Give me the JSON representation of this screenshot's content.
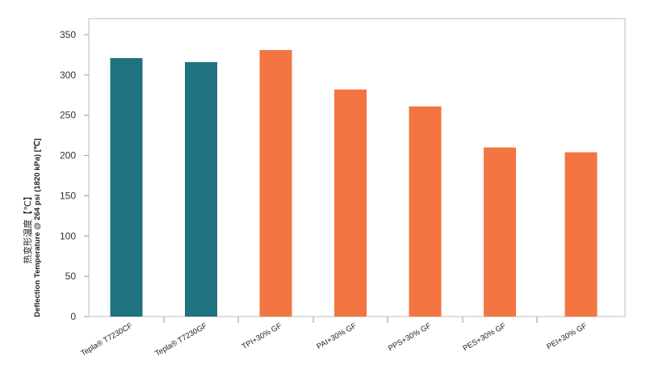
{
  "chart_data": {
    "type": "bar",
    "categories": [
      "Tepla® T7230CF",
      "Tepla® T7230GF",
      "TPI+30% GF",
      "PAI+30% GF",
      "PPS+30% GF",
      "PES+30% GF",
      "PEI+30% GF"
    ],
    "values": [
      321,
      316,
      331,
      282,
      261,
      210,
      204
    ],
    "bar_colors": [
      "#1f727f",
      "#1f727f",
      "#f37542",
      "#f37542",
      "#f37542",
      "#f37542",
      "#f37542"
    ],
    "ylabel_cn": "热变形温度【℃】",
    "ylabel_en": "Deflection Temperature @ 264 psi (1820 kPa) [℃]",
    "ylim": [
      0,
      350
    ],
    "yticks": [
      0,
      50,
      100,
      150,
      200,
      250,
      300,
      350
    ],
    "grid": false,
    "legend": "none"
  }
}
